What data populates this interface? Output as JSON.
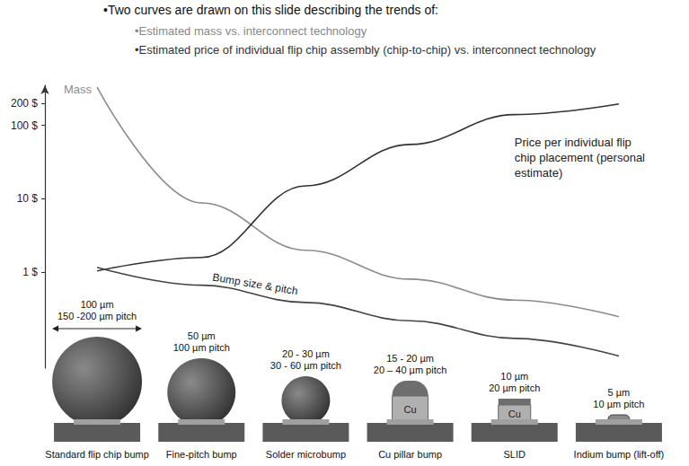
{
  "chart_data": {
    "type": "line",
    "title": "•Two curves are drawn on this slide describing the trends of:",
    "subtitle": [
      "•Estimated mass vs. interconnect technology",
      "•Estimated price of individual flip chip assembly (chip-to-chip) vs. interconnect technology"
    ],
    "categories": [
      "Standard flip chip bump",
      "Fine-pitch bump",
      "Solder microbump",
      "Cu pillar bump",
      "SLID",
      "Indium bump (lift-off)"
    ],
    "series": [
      {
        "name": "Mass",
        "color": "#8c8c8c",
        "values": [
          330,
          8.8,
          2.0,
          0.81,
          0.42,
          0.25
        ]
      },
      {
        "name": "Price per individual flip chip placement (personal estimate)",
        "color": "#333333",
        "values": [
          1.05,
          1.6,
          15,
          55,
          140,
          195
        ]
      },
      {
        "name": "Bump size & pitch",
        "color": "#444444",
        "values": [
          1.17,
          0.67,
          0.39,
          0.22,
          0.127,
          0.073
        ]
      }
    ],
    "log": "y",
    "ylim": [
      0.05,
      350
    ],
    "yticks": [
      {
        "value": 1,
        "label": "1 $"
      },
      {
        "value": 10,
        "label": "10 $"
      },
      {
        "value": 100,
        "label": "100 $"
      },
      {
        "value": 200,
        "label": "200 $"
      }
    ],
    "grid": false,
    "bump_labels": [
      {
        "size": "100 µm",
        "pitch": "150 -200 µm pitch"
      },
      {
        "size": "50 µm",
        "pitch": "100 µm pitch"
      },
      {
        "size": "20 - 30 µm",
        "pitch": "30 - 60 µm pitch"
      },
      {
        "size": "15 - 20 µm",
        "pitch": "20 – 40 µm pitch",
        "material": "Cu"
      },
      {
        "size": "10 µm",
        "pitch": "20 µm pitch",
        "material": "Cu"
      },
      {
        "size": "5 µm",
        "pitch": "10 µm pitch"
      }
    ]
  }
}
